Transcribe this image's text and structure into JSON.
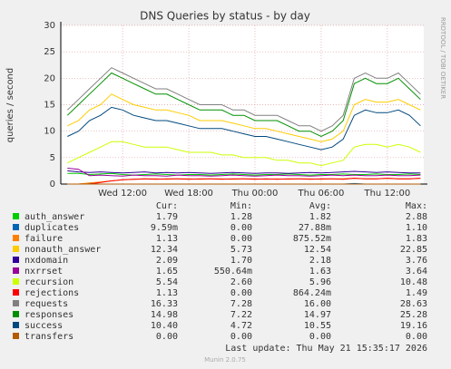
{
  "chart_data": {
    "type": "line",
    "title": "DNS Queries by status - by day",
    "y_label": "queries / second",
    "side_note": "RRDTOOL / TOBI OETIKER",
    "xlim": [
      6.4,
      39.3
    ],
    "xticks": [
      {
        "value": 12,
        "label": "Wed 12:00"
      },
      {
        "value": 18,
        "label": "Wed 18:00"
      },
      {
        "value": 24,
        "label": "Thu 00:00"
      },
      {
        "value": 30,
        "label": "Thu 06:00"
      },
      {
        "value": 36,
        "label": "Thu 12:00"
      }
    ],
    "ylim": [
      0,
      30
    ],
    "yticks": [
      0,
      5,
      10,
      15,
      20,
      25,
      30
    ],
    "grid": true,
    "x": [
      7,
      8,
      9,
      10,
      11,
      12,
      13,
      14,
      15,
      16,
      17,
      18,
      19,
      20,
      21,
      22,
      23,
      24,
      25,
      26,
      27,
      28,
      29,
      30,
      31,
      32,
      33,
      34,
      35,
      36,
      37,
      38,
      39
    ],
    "legend_headers": [
      "Cur:",
      "Min:",
      "Avg:",
      "Max:"
    ],
    "series": [
      {
        "name": "auth_answer",
        "color": "#00cc00",
        "stats": [
          "1.79",
          "1.28",
          "1.82",
          "2.88"
        ],
        "values": [
          2,
          2,
          1.8,
          1.9,
          2,
          1.8,
          1.7,
          1.8,
          1.9,
          1.8,
          1.7,
          1.8,
          1.8,
          1.7,
          1.8,
          1.9,
          1.8,
          1.7,
          1.8,
          1.8,
          1.9,
          1.8,
          1.7,
          1.8,
          1.8,
          1.9,
          1.8,
          1.8,
          1.9,
          1.8,
          1.8,
          1.9,
          1.8
        ]
      },
      {
        "name": "duplicates",
        "color": "#0066b3",
        "stats": [
          "9.59m",
          "0.00",
          "27.88m",
          "1.10"
        ],
        "values": [
          0,
          0,
          0.1,
          0,
          0,
          0,
          0,
          0,
          0,
          0,
          0,
          0,
          0,
          0,
          0,
          0,
          0,
          0,
          0,
          0,
          0,
          0,
          0,
          0,
          0,
          0,
          0.1,
          0,
          0,
          0,
          0,
          0,
          0
        ]
      },
      {
        "name": "failure",
        "color": "#ff8000",
        "stats": [
          "1.13",
          "0.00",
          "875.52m",
          "1.83"
        ],
        "values": [
          0,
          0,
          0.2,
          0.4,
          0.6,
          0.8,
          0.9,
          1,
          1,
          0.9,
          1,
          1,
          0.9,
          1,
          1,
          0.9,
          1,
          1,
          0.9,
          1,
          0.9,
          1,
          1,
          0.9,
          1,
          1,
          1.1,
          1,
          1,
          1.1,
          1,
          1,
          1.1
        ]
      },
      {
        "name": "nonauth_answer",
        "color": "#ffcc00",
        "stats": [
          "12.34",
          "5.73",
          "12.54",
          "22.85"
        ],
        "values": [
          11,
          12,
          14,
          15,
          17,
          16,
          15,
          14.5,
          14,
          14,
          13.5,
          13,
          12,
          12,
          12,
          11.5,
          11,
          10.5,
          10.5,
          10,
          9.5,
          9,
          8.5,
          8,
          8.5,
          10,
          15,
          16,
          15.5,
          15.5,
          16,
          15,
          14
        ]
      },
      {
        "name": "nxdomain",
        "color": "#330099",
        "stats": [
          "2.09",
          "1.70",
          "2.18",
          "3.76"
        ],
        "values": [
          2.5,
          2.3,
          2.2,
          2.3,
          2.2,
          2.1,
          2.2,
          2.3,
          2.1,
          2.2,
          2.1,
          2.2,
          2.1,
          2,
          2.1,
          2.2,
          2.1,
          2,
          2.1,
          2.1,
          2,
          2.1,
          2.2,
          2.1,
          2.2,
          2.3,
          2.4,
          2.3,
          2.2,
          2.3,
          2.2,
          2.1,
          2.1
        ]
      },
      {
        "name": "nxrrset",
        "color": "#990099",
        "stats": [
          "1.65",
          "550.64m",
          "1.63",
          "3.64"
        ],
        "values": [
          3,
          2.8,
          1.6,
          1.7,
          1.6,
          1.5,
          1.7,
          1.6,
          1.6,
          1.5,
          1.7,
          1.6,
          1.6,
          1.5,
          1.6,
          1.7,
          1.6,
          1.5,
          1.6,
          1.7,
          1.6,
          1.6,
          1.5,
          1.6,
          1.7,
          1.6,
          1.7,
          1.6,
          1.6,
          1.7,
          1.6,
          1.6,
          1.7
        ]
      },
      {
        "name": "recursion",
        "color": "#ccff00",
        "stats": [
          "5.54",
          "2.60",
          "5.96",
          "10.48"
        ],
        "values": [
          4,
          5,
          6,
          7,
          8,
          8,
          7.5,
          7,
          7,
          7,
          6.5,
          6,
          6,
          6,
          5.5,
          5.5,
          5,
          5,
          5,
          4.5,
          4.5,
          4,
          4,
          3.5,
          4,
          4.5,
          7,
          7.5,
          7.5,
          7,
          7.5,
          7,
          6
        ]
      },
      {
        "name": "rejections",
        "color": "#ff0000",
        "stats": [
          "1.13",
          "0.00",
          "864.24m",
          "1.49"
        ],
        "values": [
          0,
          0,
          0,
          0.3,
          0.6,
          0.8,
          0.9,
          1,
          0.9,
          1,
          1,
          0.9,
          1,
          1,
          0.9,
          1,
          1,
          0.9,
          1,
          0.9,
          1,
          1,
          0.9,
          1,
          1,
          0.9,
          1.1,
          1,
          1,
          1.1,
          1,
          1,
          1.1
        ]
      },
      {
        "name": "requests",
        "color": "#808080",
        "stats": [
          "16.33",
          "7.28",
          "16.00",
          "28.63"
        ],
        "values": [
          14,
          16,
          18,
          20,
          22,
          21,
          20,
          19,
          18,
          18,
          17,
          16,
          15,
          15,
          15,
          14,
          14,
          13,
          13,
          13,
          12,
          11,
          11,
          10,
          11,
          13,
          20,
          21,
          20,
          20,
          21,
          19,
          17
        ]
      },
      {
        "name": "responses",
        "color": "#008f00",
        "stats": [
          "14.98",
          "7.22",
          "14.97",
          "25.28"
        ],
        "values": [
          13,
          15,
          17,
          19,
          21,
          20,
          19,
          18,
          17,
          17,
          16,
          15,
          14,
          14,
          14,
          13,
          13,
          12,
          12,
          12,
          11,
          10,
          10,
          9,
          10,
          12,
          19,
          20,
          19,
          19,
          20,
          18,
          16
        ]
      },
      {
        "name": "success",
        "color": "#00487d",
        "stats": [
          "10.40",
          "4.72",
          "10.55",
          "19.16"
        ],
        "values": [
          9,
          10,
          12,
          13,
          14.5,
          14,
          13,
          12.5,
          12,
          12,
          11.5,
          11,
          10.5,
          10.5,
          10.5,
          10,
          9.5,
          9,
          9,
          8.5,
          8,
          7.5,
          7,
          6.5,
          7,
          8.5,
          13,
          14,
          13.5,
          13.5,
          14,
          13,
          11
        ]
      },
      {
        "name": "transfers",
        "color": "#b35a00",
        "stats": [
          "0.00",
          "0.00",
          "0.00",
          "0.00"
        ],
        "values": [
          0,
          0,
          0,
          0,
          0,
          0,
          0,
          0,
          0,
          0,
          0,
          0,
          0,
          0,
          0,
          0,
          0,
          0,
          0,
          0,
          0,
          0,
          0,
          0,
          0,
          0,
          0,
          0,
          0,
          0,
          0,
          0,
          0
        ]
      }
    ],
    "last_update": "Last update: Thu May 21 15:35:17 2026",
    "footer": "Munin 2.0.75"
  }
}
